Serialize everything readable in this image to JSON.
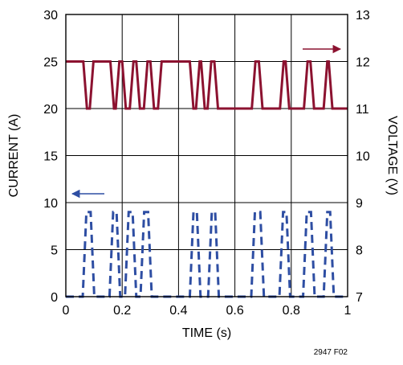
{
  "chart_data": {
    "type": "line",
    "title": "",
    "xlabel": "TIME (s)",
    "ylabel_left": "CURRENT (A)",
    "ylabel_right": "VOLTAGE (V)",
    "x_ticks": [
      "0",
      "0.2",
      "0.4",
      "0.6",
      "0.8",
      "1"
    ],
    "y_left_ticks": [
      "0",
      "5",
      "10",
      "15",
      "20",
      "25",
      "30"
    ],
    "y_right_ticks": [
      "7",
      "8",
      "9",
      "10",
      "11",
      "12",
      "13"
    ],
    "xlim": [
      0,
      1
    ],
    "ylim_left": [
      0,
      30
    ],
    "ylim_right": [
      7,
      13
    ],
    "grid": true,
    "figure_code": "2947 F02",
    "colors": {
      "voltage": "#8c1230",
      "current": "#2e4ea3",
      "grid": "#000000"
    },
    "series": [
      {
        "axis": "right",
        "style": "solid",
        "x": [
          0,
          0.062,
          0.075,
          0.085,
          0.098,
          0.158,
          0.171,
          0.177,
          0.19,
          0.2,
          0.213,
          0.227,
          0.24,
          0.25,
          0.263,
          0.277,
          0.29,
          0.3,
          0.313,
          0.327,
          0.34,
          0.44,
          0.453,
          0.462,
          0.475,
          0.48,
          0.493,
          0.503,
          0.516,
          0.527,
          0.54,
          0.66,
          0.673,
          0.685,
          0.698,
          0.76,
          0.773,
          0.78,
          0.793,
          0.845,
          0.858,
          0.868,
          0.881,
          0.915,
          0.928,
          0.933,
          0.946,
          1
        ],
        "values": [
          12,
          12,
          11,
          11,
          12,
          12,
          11,
          11,
          12,
          12,
          11,
          11,
          12,
          12,
          11,
          11,
          12,
          12,
          11,
          11,
          12,
          12,
          11,
          11,
          12,
          12,
          11,
          11,
          12,
          12,
          11,
          11,
          12,
          12,
          11,
          11,
          12,
          12,
          11,
          11,
          12,
          12,
          11,
          11,
          12,
          12,
          11,
          11
        ]
      },
      {
        "axis": "left",
        "style": "dashed",
        "x": [
          0,
          0.06,
          0.073,
          0.088,
          0.101,
          0.155,
          0.168,
          0.18,
          0.193,
          0.21,
          0.223,
          0.237,
          0.25,
          0.265,
          0.278,
          0.292,
          0.305,
          0.44,
          0.453,
          0.465,
          0.478,
          0.505,
          0.518,
          0.53,
          0.543,
          0.658,
          0.671,
          0.69,
          0.703,
          0.758,
          0.771,
          0.783,
          0.796,
          0.842,
          0.855,
          0.87,
          0.883,
          0.915,
          0.928,
          0.938,
          0.951,
          1
        ],
        "values": [
          0,
          0,
          9,
          9,
          0,
          0,
          9,
          9,
          0,
          0,
          9,
          9,
          0,
          0,
          9,
          9,
          0,
          0,
          9,
          9,
          0,
          0,
          9,
          9,
          0,
          0,
          9,
          9,
          0,
          0,
          9,
          9,
          0,
          0,
          9,
          9,
          0,
          0,
          9,
          9,
          0,
          0
        ]
      }
    ]
  }
}
